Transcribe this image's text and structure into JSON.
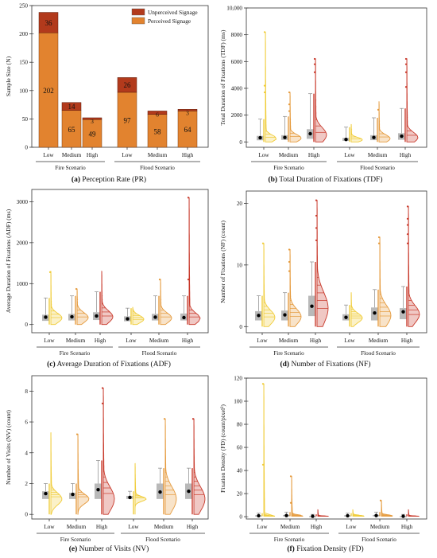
{
  "figure": {
    "colors": {
      "perceived": "#e2832f",
      "unperceived": "#b23a1c",
      "low": "#f0cc38",
      "medium": "#e59a3c",
      "high": "#c8382a",
      "box": "#a8a8a8",
      "mean": "#000000"
    },
    "groups": [
      "Fire Scenario",
      "Flood Scenario"
    ],
    "levels": [
      "Low",
      "Medium",
      "High"
    ]
  },
  "chart_data": [
    {
      "type": "bar",
      "caption_tag": "(a)",
      "caption_text": " Perception Rate (PR)",
      "ylabel": "Sample Size (N)",
      "ylim": [
        0,
        250
      ],
      "yticks": [
        0,
        50,
        100,
        150,
        200,
        250
      ],
      "categories": [
        "Low",
        "Medium",
        "High",
        "Low",
        "Medium",
        "High"
      ],
      "groups": [
        "Fire Scenario",
        "Flood Scenario"
      ],
      "legend": [
        "Unperceived Signage",
        "Perceived Signage"
      ],
      "legend_position": "top-right",
      "series": [
        {
          "name": "Perceived Signage",
          "values": [
            202,
            65,
            49,
            97,
            58,
            64
          ]
        },
        {
          "name": "Unperceived Signage",
          "values": [
            36,
            14,
            3,
            26,
            6,
            3
          ]
        }
      ]
    },
    {
      "type": "raincloud",
      "caption_tag": "(b)",
      "caption_text": " Total Duration of Fixations (TDF)",
      "ylabel": "Total Duration of Fixations (TDF) (ms)",
      "ylim": [
        -400,
        10000
      ],
      "yticks": [
        0,
        2000,
        4000,
        6000,
        8000,
        10000
      ],
      "ytick_labels": [
        "0",
        "2000",
        "4000",
        "6000",
        "8000",
        "10,000"
      ],
      "groups": [
        "Fire Scenario",
        "Flood Scenario"
      ],
      "categories": [
        "Low",
        "Medium",
        "High",
        "Low",
        "Medium",
        "High"
      ],
      "distributions": [
        {
          "q1": 120,
          "q3": 450,
          "median": 260,
          "mean": 310,
          "whisker_high": 1700,
          "max": 8200,
          "outliers": [
            3700,
            4200,
            8200
          ]
        },
        {
          "q1": 150,
          "q3": 500,
          "median": 280,
          "mean": 330,
          "whisker_high": 1900,
          "max": 3700,
          "outliers": [
            2300,
            2800,
            3700
          ]
        },
        {
          "q1": 230,
          "q3": 950,
          "median": 520,
          "mean": 610,
          "whisker_high": 3600,
          "max": 6200,
          "outliers": [
            5200,
            5800,
            6200
          ]
        },
        {
          "q1": 80,
          "q3": 300,
          "median": 160,
          "mean": 180,
          "whisker_high": 1100,
          "max": 1300,
          "outliers": []
        },
        {
          "q1": 130,
          "q3": 500,
          "median": 250,
          "mean": 330,
          "whisker_high": 1800,
          "max": 3000,
          "outliers": [
            2400
          ]
        },
        {
          "q1": 160,
          "q3": 650,
          "median": 330,
          "mean": 430,
          "whisker_high": 2500,
          "max": 6200,
          "outliers": [
            4100,
            5200,
            5800,
            6200
          ]
        }
      ]
    },
    {
      "type": "raincloud",
      "caption_tag": "(c)",
      "caption_text": " Average Duration of Fixations (ADF)",
      "ylabel": "Average Duration of Fixations (ADF) (ms)",
      "ylim": [
        -200,
        3300
      ],
      "yticks": [
        0,
        1000,
        2000,
        3000
      ],
      "ytick_labels": [
        "0",
        "1000",
        "2000",
        "3000"
      ],
      "groups": [
        "Fire Scenario",
        "Flood Scenario"
      ],
      "categories": [
        "Low",
        "Medium",
        "High",
        "Low",
        "Medium",
        "High"
      ],
      "distributions": [
        {
          "q1": 90,
          "q3": 240,
          "median": 160,
          "mean": 180,
          "whisker_high": 650,
          "max": 1300,
          "outliers": [
            1280
          ]
        },
        {
          "q1": 100,
          "q3": 260,
          "median": 170,
          "mean": 190,
          "whisker_high": 700,
          "max": 870,
          "outliers": [
            870
          ]
        },
        {
          "q1": 110,
          "q3": 300,
          "median": 190,
          "mean": 210,
          "whisker_high": 800,
          "max": 1300,
          "outliers": []
        },
        {
          "q1": 80,
          "q3": 200,
          "median": 130,
          "mean": 140,
          "whisker_high": 400,
          "max": 420,
          "outliers": []
        },
        {
          "q1": 100,
          "q3": 260,
          "median": 160,
          "mean": 180,
          "whisker_high": 700,
          "max": 1100,
          "outliers": [
            1100
          ]
        },
        {
          "q1": 100,
          "q3": 270,
          "median": 150,
          "mean": 170,
          "whisker_high": 700,
          "max": 3100,
          "outliers": [
            1100,
            3100
          ]
        }
      ]
    },
    {
      "type": "raincloud",
      "caption_tag": "(d)",
      "caption_text": " Number of Fixations (NF)",
      "ylabel": "Number of Fixations (NF) (count)",
      "ylim": [
        -1,
        22
      ],
      "yticks": [
        0,
        10,
        20
      ],
      "ytick_labels": [
        "0",
        "10",
        "20"
      ],
      "groups": [
        "Fire Scenario",
        "Flood Scenario"
      ],
      "categories": [
        "Low",
        "Medium",
        "High",
        "Low",
        "Medium",
        "High"
      ],
      "distributions": [
        {
          "q1": 1,
          "q3": 2.5,
          "median": 1.5,
          "mean": 1.8,
          "whisker_high": 5,
          "max": 13.5,
          "outliers": [
            13.5
          ]
        },
        {
          "q1": 1,
          "q3": 2.6,
          "median": 1.6,
          "mean": 1.9,
          "whisker_high": 5.5,
          "max": 12.5,
          "outliers": [
            9,
            10.5,
            12.5
          ]
        },
        {
          "q1": 1.7,
          "q3": 5,
          "median": 3,
          "mean": 3.3,
          "whisker_high": 10.5,
          "max": 20.5,
          "outliers": [
            14,
            16,
            18,
            20.5
          ]
        },
        {
          "q1": 1,
          "q3": 2,
          "median": 1.4,
          "mean": 1.5,
          "whisker_high": 3.5,
          "max": 5.5,
          "outliers": []
        },
        {
          "q1": 1,
          "q3": 3.1,
          "median": 1.8,
          "mean": 2.2,
          "whisker_high": 6,
          "max": 14.5,
          "outliers": [
            13.5,
            14.5
          ]
        },
        {
          "q1": 1.2,
          "q3": 3,
          "median": 2,
          "mean": 2.4,
          "whisker_high": 6.5,
          "max": 19.5,
          "outliers": [
            13.5,
            15,
            16.5,
            17.5,
            19.5
          ]
        }
      ]
    },
    {
      "type": "raincloud",
      "caption_tag": "(e)",
      "caption_text": " Number of Visits (NV)",
      "ylabel": "Number of Visits (NV) (count)",
      "ylim": [
        -0.3,
        9
      ],
      "yticks": [
        0,
        2,
        4,
        6,
        8
      ],
      "ytick_labels": [
        "0",
        "2",
        "4",
        "6",
        "8"
      ],
      "groups": [
        "Fire Scenario",
        "Flood Scenario"
      ],
      "categories": [
        "Low",
        "Medium",
        "High",
        "Low",
        "Medium",
        "High"
      ],
      "distributions": [
        {
          "q1": 1,
          "q3": 1.5,
          "median": 1,
          "mean": 1.35,
          "whisker_high": 2,
          "max": 5.3,
          "outliers": []
        },
        {
          "q1": 1,
          "q3": 1.4,
          "median": 1,
          "mean": 1.3,
          "whisker_high": 2,
          "max": 5.2,
          "outliers": [
            5.2
          ]
        },
        {
          "q1": 1,
          "q3": 2,
          "median": 1,
          "mean": 1.6,
          "whisker_high": 3.5,
          "max": 8.2,
          "outliers": [
            7.2,
            8.2
          ]
        },
        {
          "q1": 1,
          "q3": 1.2,
          "median": 1,
          "mean": 1.1,
          "whisker_high": 1.5,
          "max": 3.3,
          "outliers": []
        },
        {
          "q1": 1,
          "q3": 2,
          "median": 1,
          "mean": 1.45,
          "whisker_high": 3,
          "max": 6.2,
          "outliers": [
            6.2
          ]
        },
        {
          "q1": 1,
          "q3": 2,
          "median": 1,
          "mean": 1.5,
          "whisker_high": 3,
          "max": 6.2,
          "outliers": [
            6.2
          ]
        }
      ]
    },
    {
      "type": "raincloud",
      "caption_tag": "(f)",
      "caption_text": " Fixation Density (FD)",
      "ylabel": "Fixation Density (FD) (count/pixel²)",
      "ylim": [
        -2,
        120
      ],
      "yticks": [
        0,
        20,
        40,
        60,
        80,
        100,
        120
      ],
      "ytick_labels": [
        "0",
        "20",
        "40",
        "60",
        "80",
        "100",
        "120"
      ],
      "groups": [
        "Fire Scenario",
        "Flood Scenario"
      ],
      "categories": [
        "Low",
        "Medium",
        "High",
        "Low",
        "Medium",
        "High"
      ],
      "distributions": [
        {
          "q1": 0.2,
          "q3": 1.2,
          "median": 0.5,
          "mean": 0.8,
          "whisker_high": 3,
          "max": 115,
          "outliers": [
            45,
            115
          ]
        },
        {
          "q1": 0.3,
          "q3": 1.5,
          "median": 0.7,
          "mean": 1,
          "whisker_high": 4,
          "max": 35,
          "outliers": [
            12,
            35
          ]
        },
        {
          "q1": 0.1,
          "q3": 0.6,
          "median": 0.3,
          "mean": 0.4,
          "whisker_high": 2,
          "max": 6,
          "outliers": []
        },
        {
          "q1": 0.2,
          "q3": 1.2,
          "median": 0.5,
          "mean": 0.8,
          "whisker_high": 3,
          "max": 6,
          "outliers": []
        },
        {
          "q1": 0.3,
          "q3": 1.5,
          "median": 0.7,
          "mean": 1,
          "whisker_high": 4,
          "max": 14,
          "outliers": [
            14
          ]
        },
        {
          "q1": 0.1,
          "q3": 0.6,
          "median": 0.3,
          "mean": 0.4,
          "whisker_high": 2,
          "max": 6,
          "outliers": []
        }
      ]
    }
  ]
}
